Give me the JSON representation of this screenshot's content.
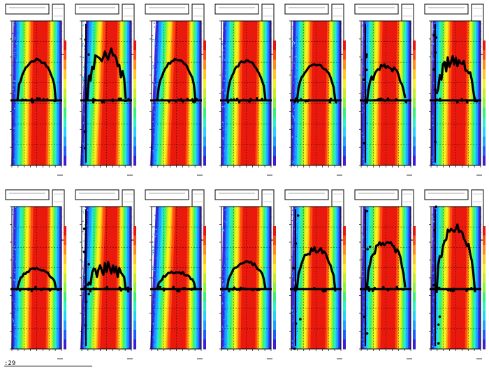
{
  "figure": {
    "background": "#ffffff",
    "footer_label": ":29"
  },
  "palette": [
    "#3a1fd6",
    "#1f5cff",
    "#1fa0ff",
    "#23d3ff",
    "#27f2c8",
    "#37f07a",
    "#8af43a",
    "#c6f01f",
    "#f4f21f",
    "#ffc71a",
    "#ff8c14",
    "#ff4a10",
    "#e8160f"
  ],
  "chart_data": [
    {
      "type": "heatmap",
      "profile_plateau": 0.73,
      "profile_level": 0.45,
      "scatter": "low"
    },
    {
      "type": "heatmap",
      "profile_plateau": 0.78,
      "profile_level": 0.45,
      "scatter": "high"
    },
    {
      "type": "heatmap",
      "profile_plateau": 0.73,
      "profile_level": 0.45,
      "scatter": "low"
    },
    {
      "type": "heatmap",
      "profile_plateau": 0.72,
      "profile_level": 0.45,
      "scatter": "low"
    },
    {
      "type": "heatmap",
      "profile_plateau": 0.7,
      "profile_level": 0.45,
      "scatter": "low"
    },
    {
      "type": "heatmap",
      "profile_plateau": 0.68,
      "profile_level": 0.45,
      "scatter": "medium"
    },
    {
      "type": "heatmap",
      "profile_plateau": 0.73,
      "profile_level": 0.45,
      "scatter": "high"
    },
    {
      "type": "heatmap",
      "profile_plateau": 0.56,
      "profile_level": 0.42,
      "scatter": "low"
    },
    {
      "type": "heatmap",
      "profile_plateau": 0.57,
      "profile_level": 0.42,
      "scatter": "high"
    },
    {
      "type": "heatmap",
      "profile_plateau": 0.54,
      "profile_level": 0.42,
      "scatter": "low"
    },
    {
      "type": "heatmap",
      "profile_plateau": 0.61,
      "profile_level": 0.42,
      "scatter": "low"
    },
    {
      "type": "heatmap",
      "profile_plateau": 0.7,
      "profile_level": 0.42,
      "scatter": "medium"
    },
    {
      "type": "heatmap",
      "profile_plateau": 0.75,
      "profile_level": 0.42,
      "scatter": "medium"
    },
    {
      "type": "heatmap",
      "profile_plateau": 0.83,
      "profile_level": 0.42,
      "scatter": "high"
    }
  ]
}
